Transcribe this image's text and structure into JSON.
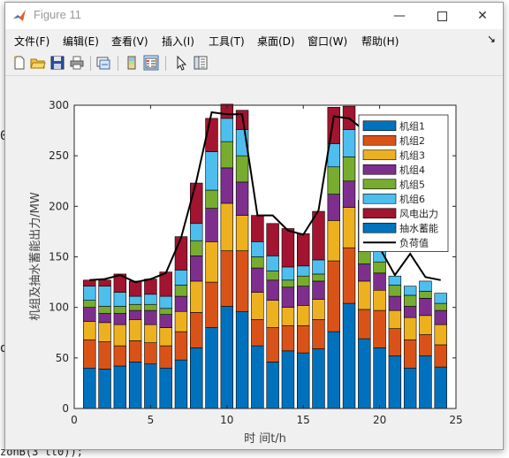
{
  "window": {
    "title": "Figure 11"
  },
  "background": {
    "text_left_1": "0",
    "text_left_2": "o",
    "text_bottom": "zonB(3 tt0));"
  },
  "menu": [
    "文件(F)",
    "编辑(E)",
    "查看(V)",
    "插入(I)",
    "工具(T)",
    "桌面(D)",
    "窗口(W)",
    "帮助(H)"
  ],
  "toolbar": {
    "icons": [
      "new-figure-icon",
      "open-file-icon",
      "save-icon",
      "print-icon",
      "link-icon",
      "colorbar-icon",
      "legend-icon",
      "pointer-icon",
      "property-inspector-icon"
    ]
  },
  "chart_data": {
    "type": "bar",
    "stacked": true,
    "xlabel": "时 间t/h",
    "ylabel": "机组及抽水蓄能出力/MW",
    "xlim": [
      0,
      25
    ],
    "ylim": [
      0,
      300
    ],
    "xticks": [
      0,
      5,
      10,
      15,
      20,
      25
    ],
    "yticks": [
      0,
      50,
      100,
      150,
      200,
      250,
      300
    ],
    "legend_position": "top-right",
    "x": [
      1,
      2,
      3,
      4,
      5,
      6,
      7,
      8,
      9,
      10,
      11,
      12,
      13,
      14,
      15,
      16,
      17,
      18,
      19,
      20,
      21,
      22,
      23,
      24
    ],
    "series": [
      {
        "name": "机组1",
        "color": "#0072BD",
        "values": [
          40,
          39,
          42,
          46,
          44,
          40,
          48,
          60,
          80,
          101,
          96,
          62,
          46,
          57,
          55,
          59,
          76,
          104,
          69,
          60,
          52,
          40,
          52,
          41
        ]
      },
      {
        "name": "机组2",
        "color": "#D95319",
        "values": [
          28,
          27,
          20,
          21,
          21,
          22,
          28,
          35,
          45,
          55,
          60,
          26,
          34,
          25,
          27,
          29,
          70,
          55,
          29,
          37,
          27,
          28,
          21,
          22
        ]
      },
      {
        "name": "机组3",
        "color": "#EDB120",
        "values": [
          18,
          19,
          21,
          21,
          18,
          18,
          20,
          31,
          40,
          47,
          35,
          27,
          27,
          18,
          20,
          20,
          40,
          40,
          28,
          20,
          18,
          22,
          19,
          20
        ]
      },
      {
        "name": "机组4",
        "color": "#7E2F8E",
        "values": [
          14,
          9,
          11,
          9,
          14,
          13,
          15,
          25,
          33,
          35,
          33,
          24,
          20,
          20,
          19,
          18,
          26,
          26,
          17,
          17,
          14,
          11,
          17,
          14
        ]
      },
      {
        "name": "机组5",
        "color": "#77AC30",
        "values": [
          7,
          7,
          7,
          6,
          6,
          6,
          11,
          15,
          18,
          26,
          26,
          11,
          9,
          7,
          10,
          7,
          27,
          24,
          15,
          11,
          11,
          11,
          7,
          7
        ]
      },
      {
        "name": "机组6",
        "color": "#4DBEEE",
        "values": [
          14,
          20,
          14,
          8,
          10,
          12,
          15,
          17,
          38,
          23,
          26,
          15,
          15,
          13,
          10,
          14,
          23,
          27,
          23,
          14,
          9,
          9,
          10,
          10
        ]
      },
      {
        "name": "风电出力",
        "color": "#A2142F",
        "values": [
          6,
          6,
          18,
          15,
          15,
          24,
          33,
          40,
          33,
          14,
          19,
          26,
          32,
          38,
          32,
          48,
          36,
          23,
          25,
          0,
          0,
          0,
          0,
          0
        ]
      },
      {
        "name": "抽水蓄能",
        "color": "#0072BD",
        "values": [
          0,
          0,
          0,
          0,
          0,
          0,
          0,
          0,
          0,
          0,
          0,
          0,
          0,
          0,
          0,
          0,
          0,
          0,
          0,
          0,
          0,
          0,
          0,
          0
        ]
      }
    ],
    "load": {
      "name": "负荷值",
      "color": "#000000",
      "values": [
        127,
        128,
        132,
        125,
        128,
        134,
        169,
        225,
        293,
        291,
        291,
        191,
        191,
        176,
        172,
        196,
        289,
        287,
        275,
        159,
        132,
        153,
        130,
        127
      ]
    }
  }
}
